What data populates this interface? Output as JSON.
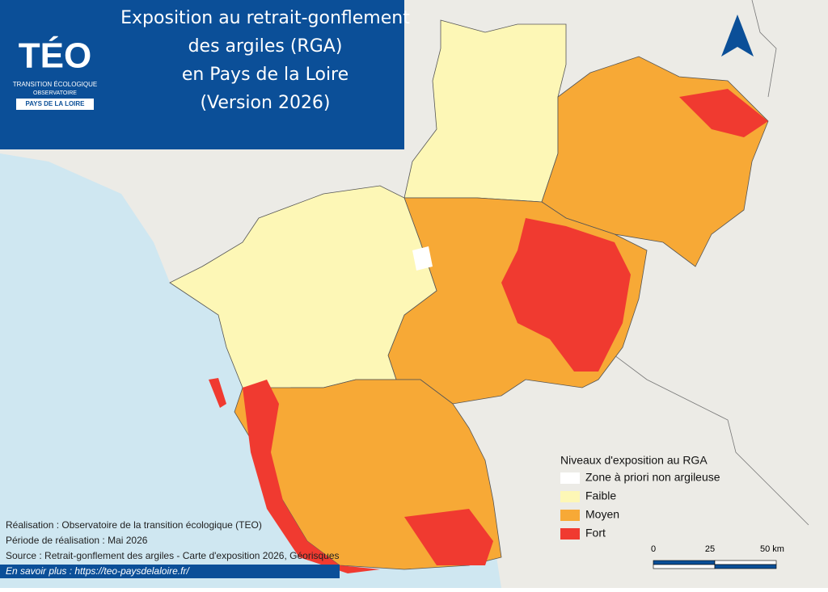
{
  "title": {
    "lines": [
      "Exposition au retrait-gonflement",
      "des argiles (RGA)",
      "en Pays de la Loire",
      "(Version 2026)"
    ]
  },
  "logo": {
    "name": "TÉO",
    "line1": "TRANSITION ÉCOLOGIQUE",
    "line2": "OBSERVATOIRE",
    "region": "PAYS DE LA LOIRE"
  },
  "legend": {
    "title": "Niveaux d'exposition au RGA",
    "items": [
      {
        "label": "Zone à priori non argileuse",
        "color": "#ffffff"
      },
      {
        "label": "Faible",
        "color": "#fdf7b6"
      },
      {
        "label": "Moyen",
        "color": "#f7a936"
      },
      {
        "label": "Fort",
        "color": "#f03a30"
      }
    ]
  },
  "scale_bar": {
    "labels": [
      "0",
      "25",
      "50 km"
    ]
  },
  "credits": [
    "Réalisation : Observatoire de la transition écologique (TEO)",
    "Période de réalisation : Mai 2026",
    "Source : Retrait-gonflement des argiles - Carte d'exposition 2026, Géorisques"
  ],
  "link": "En savoir plus : https://teo-paysdelaloire.fr/"
}
